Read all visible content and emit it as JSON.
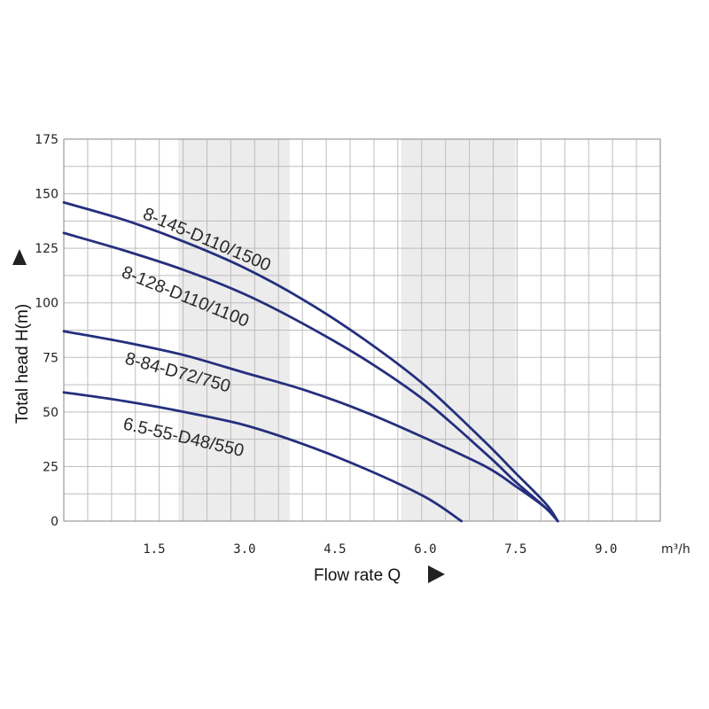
{
  "chart_data": {
    "type": "line",
    "xlabel": "Flow rate Q",
    "ylabel": "Total head H(m)",
    "x_unit": "m³/h",
    "xlim": [
      0,
      9.9
    ],
    "ylim": [
      0,
      175
    ],
    "x_ticks": [
      "1.5",
      "3.0",
      "4.5",
      "6.0",
      "7.5",
      "9.0"
    ],
    "y_ticks": [
      "0",
      "25",
      "50",
      "75",
      "100",
      "125",
      "150",
      "175"
    ],
    "grid": true,
    "shaded_bands": [
      [
        1.9,
        3.75
      ],
      [
        5.6,
        7.5
      ]
    ],
    "series": [
      {
        "name": "8-145-D110/1500",
        "x": [
          0,
          1,
          2,
          3,
          4,
          5,
          6,
          7,
          7.5,
          8.0,
          8.2
        ],
        "y": [
          146,
          138,
          128,
          116,
          101,
          83,
          62,
          36,
          22,
          8,
          0
        ]
      },
      {
        "name": "8-128-D110/1100",
        "x": [
          0,
          1,
          2,
          3,
          4,
          5,
          6,
          7,
          7.5,
          8.0,
          8.2
        ],
        "y": [
          132,
          124,
          115,
          104,
          90,
          74,
          55,
          31,
          18,
          6,
          0
        ]
      },
      {
        "name": "8-84-D72/750",
        "x": [
          0,
          1,
          2,
          3,
          4,
          5,
          6,
          7,
          7.5,
          8.0,
          8.2
        ],
        "y": [
          87,
          82,
          76,
          68,
          60,
          50,
          38,
          25,
          16,
          6,
          0
        ]
      },
      {
        "name": "6.5-55-D48/550",
        "x": [
          0,
          1,
          2,
          3,
          4,
          5,
          6,
          6.6
        ],
        "y": [
          59,
          55,
          50,
          44,
          35,
          24,
          11,
          0
        ]
      }
    ]
  },
  "colors": {
    "curve": "#252f7e",
    "grid": "#bdbdbd",
    "band": "#ececec",
    "text": "#222222"
  }
}
